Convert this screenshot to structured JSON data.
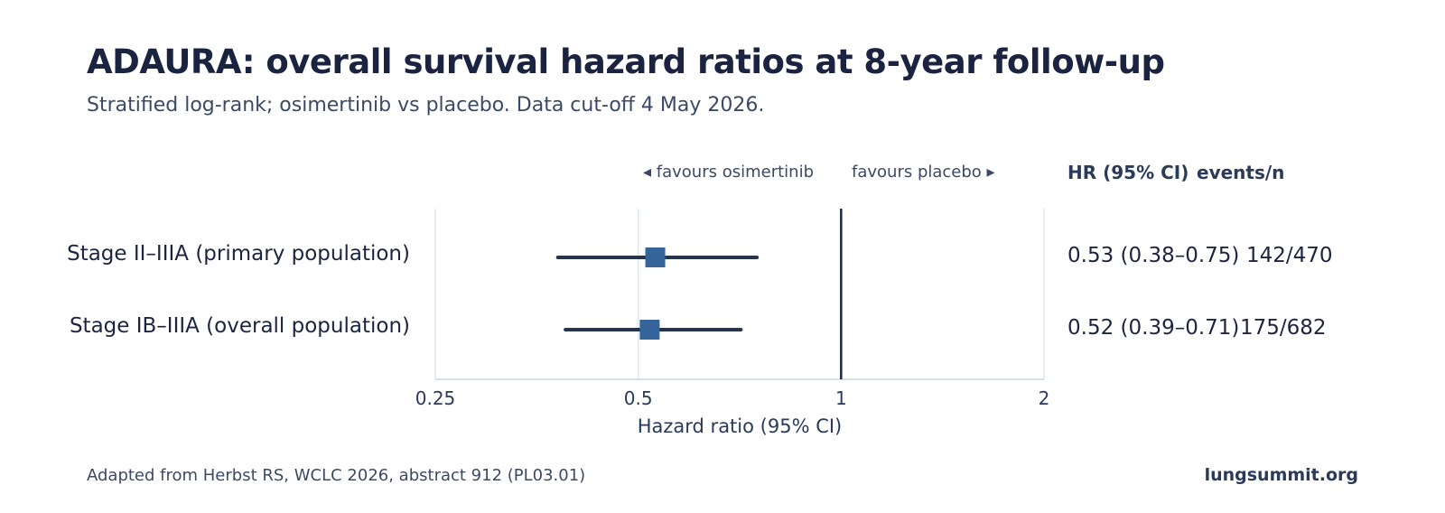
{
  "chart_data": {
    "type": "forest",
    "title": "ADAURA: overall survival hazard ratios at 8-year follow-up",
    "subtitle": "Stratified log-rank; osimertinib vs placebo. Data cut-off 4 May 2026.",
    "xlabel": "Hazard ratio (95% CI)",
    "xscale": "log",
    "xlim": [
      0.25,
      2
    ],
    "xticks": [
      "0.25",
      "0.5",
      "1",
      "2"
    ],
    "reference_line": 1,
    "favours_left": "◂ favours osimertinib",
    "favours_right": "favours placebo ▸",
    "column_headers": [
      "HR (95% CI)",
      "events/n"
    ],
    "rows": [
      {
        "label": "Stage II–IIIA (primary population)",
        "hr": 0.53,
        "ci_low": 0.38,
        "ci_high": 0.75,
        "hr_text": "0.53 (0.38–0.75)",
        "events": "142/470"
      },
      {
        "label": "Stage IB–IIIA (overall population)",
        "hr": 0.52,
        "ci_low": 0.39,
        "ci_high": 0.71,
        "hr_text": "0.52 (0.39–0.71)",
        "events": "175/682"
      }
    ],
    "colors": {
      "marker": "#35649a",
      "ci_line": "#24344f",
      "ref_line": "#1a2a45",
      "grid": "#dfe7ee",
      "axis": "#d6dee6"
    }
  },
  "footer": {
    "source": "Adapted from Herbst RS, WCLC 2026, abstract 912 (PL03.01)",
    "brand": "lungsummit.org"
  }
}
